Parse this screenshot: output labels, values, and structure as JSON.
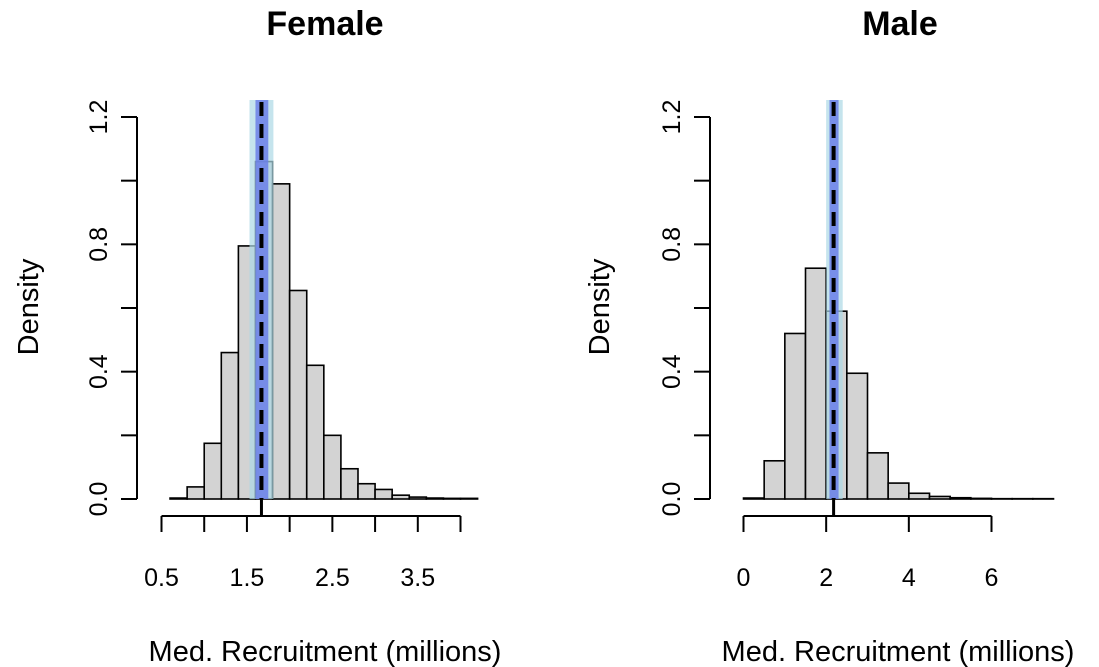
{
  "chart_data": [
    {
      "type": "histogram",
      "title": "Female",
      "xlabel": "Med. Recruitment (millions)",
      "ylabel": "Density",
      "xlim": [
        0.5,
        4.2
      ],
      "ylim": [
        0,
        1.2
      ],
      "x_ticks": [
        0.5,
        1.0,
        1.5,
        2.0,
        2.5,
        3.0,
        3.5,
        4.0
      ],
      "x_tick_labels": [
        "0.5",
        "1.5",
        "2.5",
        "3.5"
      ],
      "x_tick_label_values": [
        0.5,
        1.5,
        2.5,
        3.5
      ],
      "y_ticks": [
        0.0,
        0.2,
        0.4,
        0.6,
        0.8,
        1.0,
        1.2
      ],
      "y_tick_labels": [
        "0.0",
        "0.4",
        "0.8",
        "1.2"
      ],
      "y_tick_label_values": [
        0.0,
        0.4,
        0.8,
        1.2
      ],
      "bin_edges": [
        0.6,
        0.8,
        1.0,
        1.2,
        1.4,
        1.6,
        1.8,
        2.0,
        2.2,
        2.4,
        2.6,
        2.8,
        3.0,
        3.2,
        3.4,
        3.6,
        3.8,
        4.0,
        4.2
      ],
      "densities": [
        0.003,
        0.038,
        0.175,
        0.46,
        0.795,
        1.06,
        0.99,
        0.655,
        0.42,
        0.2,
        0.095,
        0.048,
        0.03,
        0.012,
        0.006,
        0.003,
        0.002,
        0.002
      ],
      "bar_color": "#d3d3d3",
      "outer_band": [
        1.53,
        1.81
      ],
      "outer_band_color": "#add8e6",
      "inner_band": [
        1.6,
        1.75
      ],
      "inner_band_color": "#6a7fe8",
      "median_line": 1.67,
      "median_line_color": "#000000",
      "grid": false
    },
    {
      "type": "histogram",
      "title": "Male",
      "xlabel": "Med. Recruitment (millions)",
      "ylabel": "Density",
      "xlim": [
        0,
        7.5
      ],
      "ylim": [
        0,
        1.2
      ],
      "x_ticks": [
        0,
        2,
        4,
        6
      ],
      "x_tick_labels": [
        "0",
        "2",
        "4",
        "6"
      ],
      "x_tick_label_values": [
        0,
        2,
        4,
        6
      ],
      "y_ticks": [
        0.0,
        0.2,
        0.4,
        0.6,
        0.8,
        1.0,
        1.2
      ],
      "y_tick_labels": [
        "0.0",
        "0.4",
        "0.8",
        "1.2"
      ],
      "y_tick_label_values": [
        0.0,
        0.4,
        0.8,
        1.2
      ],
      "bin_edges": [
        0,
        0.5,
        1.0,
        1.5,
        2.0,
        2.5,
        3.0,
        3.5,
        4.0,
        4.5,
        5.0,
        5.5,
        6.0,
        6.5,
        7.0,
        7.5
      ],
      "densities": [
        0.003,
        0.12,
        0.52,
        0.725,
        0.59,
        0.395,
        0.145,
        0.05,
        0.018,
        0.008,
        0.004,
        0.002,
        0.001,
        0.001,
        0.001
      ],
      "bar_color": "#d3d3d3",
      "outer_band": [
        2.0,
        2.4
      ],
      "outer_band_color": "#add8e6",
      "inner_band": [
        2.08,
        2.3
      ],
      "inner_band_color": "#6a7fe8",
      "median_line": 2.18,
      "median_line_color": "#000000",
      "grid": false
    }
  ]
}
